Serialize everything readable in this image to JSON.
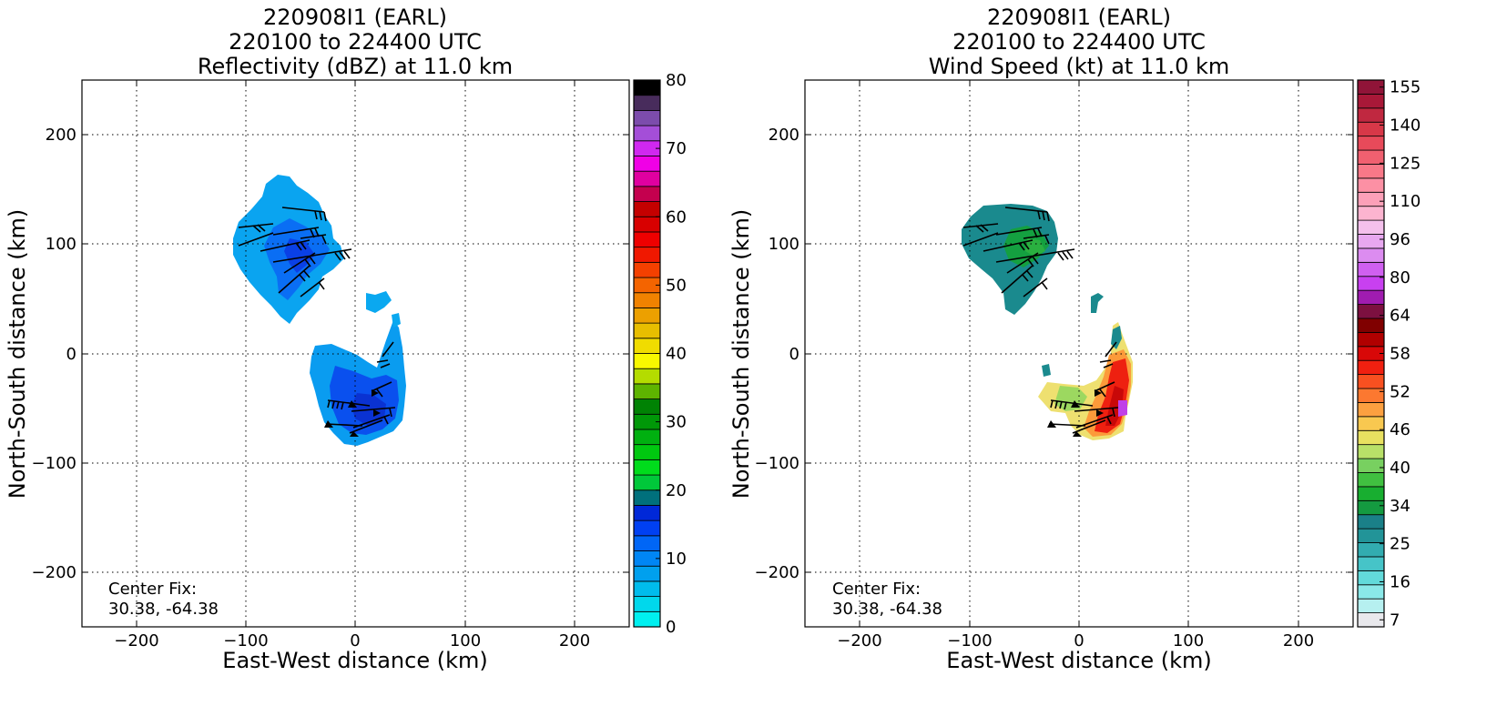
{
  "panels": [
    {
      "title_lines": [
        "220908I1 (EARL)",
        "220100 to 224400 UTC",
        "Reflectivity (dBZ) at 11.0 km"
      ],
      "xlabel": "East-West distance (km)",
      "ylabel": "North-South distance (km)",
      "center_fix": [
        "Center Fix:",
        "30.38, -64.38"
      ],
      "xticks": [
        "−200",
        "−100",
        "0",
        "100",
        "200"
      ],
      "yticks": [
        "200",
        "100",
        "0",
        "−100",
        "−200"
      ],
      "colorbar": {
        "ticks": [
          "0",
          "10",
          "20",
          "30",
          "40",
          "50",
          "60",
          "70",
          "80"
        ],
        "colors": [
          "#00f0f0",
          "#00d8ec",
          "#00bcec",
          "#00a0ee",
          "#0086f4",
          "#0066f6",
          "#0040f2",
          "#0028d8",
          "#00707c",
          "#00c83a",
          "#00dc1c",
          "#00c810",
          "#00b010",
          "#009808",
          "#008204",
          "#5eb400",
          "#b4dc00",
          "#f8f800",
          "#f0dc00",
          "#e8be00",
          "#eca000",
          "#f08200",
          "#f46400",
          "#f44000",
          "#f01800",
          "#ee0000",
          "#d80000",
          "#c40000",
          "#c4004e",
          "#e000a0",
          "#f000e6",
          "#d028f0",
          "#a44ed8",
          "#7c4cac",
          "#482c5c",
          "#000000"
        ]
      },
      "chart_data": {
        "type": "heatmap",
        "title": "220908I1 (EARL) 220100 to 224400 UTC Reflectivity (dBZ) at 11.0 km",
        "xlabel": "East-West distance (km)",
        "ylabel": "North-South distance (km)",
        "xlim": [
          -250,
          250
        ],
        "ylim": [
          -250,
          250
        ],
        "grid": true,
        "colorbar_label": "Reflectivity (dBZ)",
        "colorbar_range": [
          0,
          80
        ],
        "center_fix": [
          30.38,
          -64.38
        ],
        "regions": [
          {
            "name": "north band",
            "outline": [
              [
                -70,
                160
              ],
              [
                -50,
                150
              ],
              [
                -35,
                125
              ],
              [
                -20,
                110
              ],
              [
                -10,
                95
              ],
              [
                -20,
                75
              ],
              [
                -30,
                50
              ],
              [
                -45,
                35
              ],
              [
                -60,
                25
              ],
              [
                -65,
                45
              ],
              [
                -85,
                65
              ],
              [
                -100,
                80
              ],
              [
                -110,
                110
              ],
              [
                -95,
                135
              ],
              [
                -80,
                150
              ]
            ],
            "value_dbz": 10
          },
          {
            "name": "south core",
            "outline": [
              [
                -40,
                10
              ],
              [
                -20,
                8
              ],
              [
                0,
                2
              ],
              [
                20,
                -10
              ],
              [
                30,
                0
              ],
              [
                35,
                15
              ],
              [
                45,
                -5
              ],
              [
                48,
                -30
              ],
              [
                45,
                -60
              ],
              [
                35,
                -70
              ],
              [
                15,
                -80
              ],
              [
                -5,
                -80
              ],
              [
                -20,
                -70
              ],
              [
                -25,
                -55
              ],
              [
                -35,
                -40
              ],
              [
                -45,
                -20
              ]
            ],
            "value_dbz": 12
          },
          {
            "name": "north blob",
            "outline": [
              [
                10,
                55
              ],
              [
                30,
                58
              ],
              [
                35,
                45
              ],
              [
                25,
                40
              ],
              [
                12,
                42
              ]
            ],
            "value_dbz": 8
          }
        ]
      }
    },
    {
      "title_lines": [
        "220908I1 (EARL)",
        "220100 to 224400 UTC",
        "Wind Speed (kt) at 11.0 km"
      ],
      "xlabel": "East-West distance (km)",
      "ylabel": "North-South distance (km)",
      "center_fix": [
        "Center Fix:",
        "30.38, -64.38"
      ],
      "xticks": [
        "−200",
        "−100",
        "0",
        "100",
        "200"
      ],
      "yticks": [
        "200",
        "100",
        "0",
        "−100",
        "−200"
      ],
      "colorbar": {
        "ticks": [
          "7",
          "16",
          "25",
          "34",
          "40",
          "46",
          "52",
          "58",
          "64",
          "80",
          "96",
          "110",
          "125",
          "140",
          "155"
        ],
        "colors": [
          "#e8e8ec",
          "#b6f0f0",
          "#8ae8e8",
          "#62dada",
          "#46c4c8",
          "#32acb0",
          "#229498",
          "#1a8088",
          "#149a40",
          "#18ae30",
          "#40c040",
          "#78d060",
          "#b8e068",
          "#e8e060",
          "#f8c850",
          "#fca040",
          "#fc7830",
          "#f85020",
          "#f02010",
          "#d80808",
          "#b00000",
          "#800000",
          "#7c1040",
          "#a01cb0",
          "#c840f0",
          "#d060f0",
          "#dc8cf0",
          "#e8a8f0",
          "#f4c0ec",
          "#fcb4d0",
          "#fca0b8",
          "#fc90a4",
          "#f87888",
          "#f06070",
          "#e84a5a",
          "#d83848",
          "#c02840",
          "#a81838",
          "#901438"
        ]
      },
      "chart_data": {
        "type": "heatmap",
        "title": "220908I1 (EARL) 220100 to 224400 UTC Wind Speed (kt) at 11.0 km",
        "xlabel": "East-West distance (km)",
        "ylabel": "North-South distance (km)",
        "xlim": [
          -250,
          250
        ],
        "ylim": [
          -250,
          250
        ],
        "grid": true,
        "colorbar_label": "Wind Speed (kt)",
        "colorbar_range": [
          7,
          160
        ],
        "center_fix": [
          30.38,
          -64.38
        ],
        "regions": [
          {
            "name": "north band",
            "outline": [
              [
                -80,
                130
              ],
              [
                -40,
                130
              ],
              [
                -25,
                120
              ],
              [
                -25,
                95
              ],
              [
                -35,
                75
              ],
              [
                -45,
                55
              ],
              [
                -60,
                38
              ],
              [
                -72,
                35
              ],
              [
                -78,
                55
              ],
              [
                -95,
                70
              ],
              [
                -110,
                90
              ],
              [
                -108,
                112
              ]
            ],
            "value_kt": 25
          },
          {
            "name": "south core",
            "outline": [
              [
                30,
                25
              ],
              [
                35,
                10
              ],
              [
                42,
                -5
              ],
              [
                45,
                -25
              ],
              [
                44,
                -50
              ],
              [
                40,
                -72
              ],
              [
                25,
                -80
              ],
              [
                5,
                -78
              ],
              [
                -5,
                -65
              ],
              [
                -8,
                -55
              ],
              [
                -20,
                -55
              ],
              [
                -35,
                -30
              ],
              [
                0,
                -25
              ],
              [
                20,
                -15
              ],
              [
                28,
                5
              ]
            ],
            "value_kt": 55
          },
          {
            "name": "north blob",
            "outline": [
              [
                12,
                55
              ],
              [
                18,
                56
              ],
              [
                17,
                48
              ],
              [
                12,
                45
              ]
            ],
            "value_kt": 25
          }
        ]
      }
    }
  ]
}
